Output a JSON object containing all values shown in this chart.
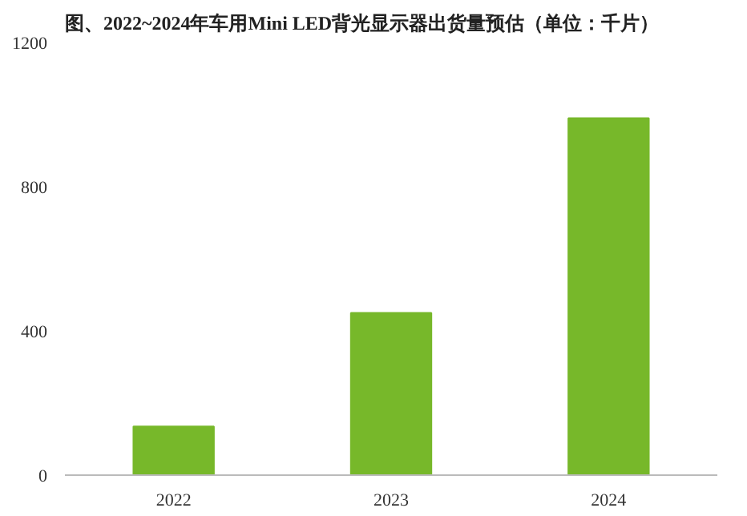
{
  "chart_data": {
    "type": "bar",
    "title": "图、2022~2024年车用Mini LED背光显示器出货量预估（单位：千片）",
    "categories": [
      "2022",
      "2023",
      "2024"
    ],
    "values": [
      135,
      450,
      990
    ],
    "color": "#77b82a",
    "ylim": [
      0,
      1200
    ],
    "yticks": [
      0,
      400,
      800,
      1200
    ],
    "grid": false
  }
}
